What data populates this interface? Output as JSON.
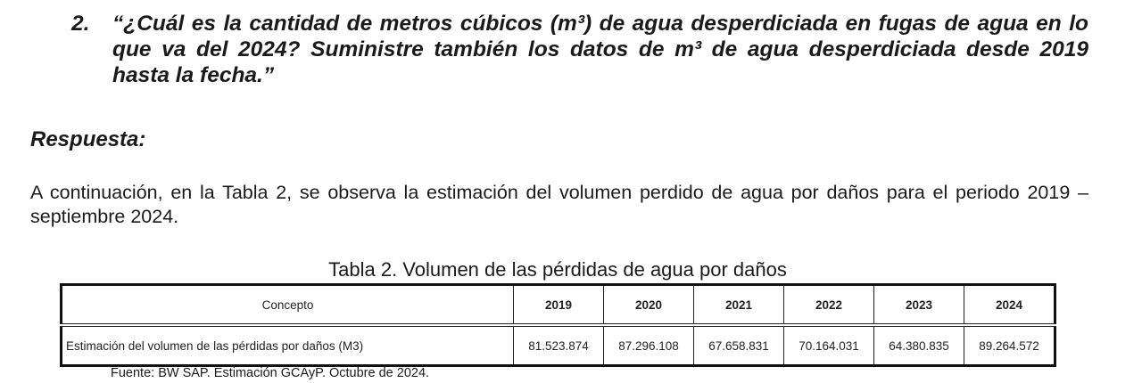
{
  "question": {
    "number": "2.",
    "text": "“¿Cuál es la cantidad de metros cúbicos (m³) de agua desperdiciada en fugas de agua en lo que va del 2024? Suministre también los datos de m³ de agua desperdiciada desde 2019 hasta la fecha.”"
  },
  "answer": {
    "heading": "Respuesta:",
    "paragraph": "A continuación, en la Tabla 2, se observa la estimación del volumen perdido de agua por daños para el periodo 2019 – septiembre 2024."
  },
  "table": {
    "caption": "Tabla 2. Volumen de las pérdidas de agua por daños",
    "headers": [
      "Concepto",
      "2019",
      "2020",
      "2021",
      "2022",
      "2023",
      "2024"
    ],
    "rows": [
      [
        "Estimación del volumen de las pérdidas por daños (M3)",
        "81.523.874",
        "87.296.108",
        "67.658.831",
        "70.164.031",
        "64.380.835",
        "89.264.572"
      ]
    ],
    "source": "Fuente: BW SAP. Estimación GCAyP. Octubre de 2024."
  }
}
